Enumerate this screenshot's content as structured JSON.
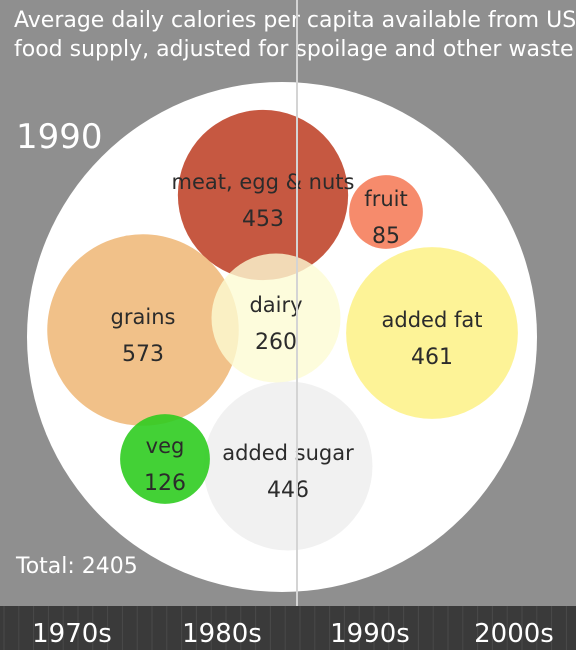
{
  "chart_data": {
    "type": "bubble",
    "title_lines": [
      "Average daily calories per capita available from US",
      "food supply, adjusted for spoilage and other waste"
    ],
    "year": "1990",
    "total_label": "Total: 2405",
    "categories": [
      "meat, egg & nuts",
      "fruit",
      "grains",
      "dairy",
      "added fat",
      "veg",
      "added sugar"
    ],
    "values": [
      453,
      85,
      573,
      260,
      461,
      126,
      446
    ],
    "colors": [
      "#c0462c",
      "#f57e5c",
      "#f0ba7c",
      "#fdfbd3",
      "#fdf28c",
      "#2fcc20",
      "#efefef"
    ],
    "timeline": {
      "decades": [
        "1970s",
        "1980s",
        "1990s",
        "2000s"
      ],
      "current": "1990"
    }
  }
}
